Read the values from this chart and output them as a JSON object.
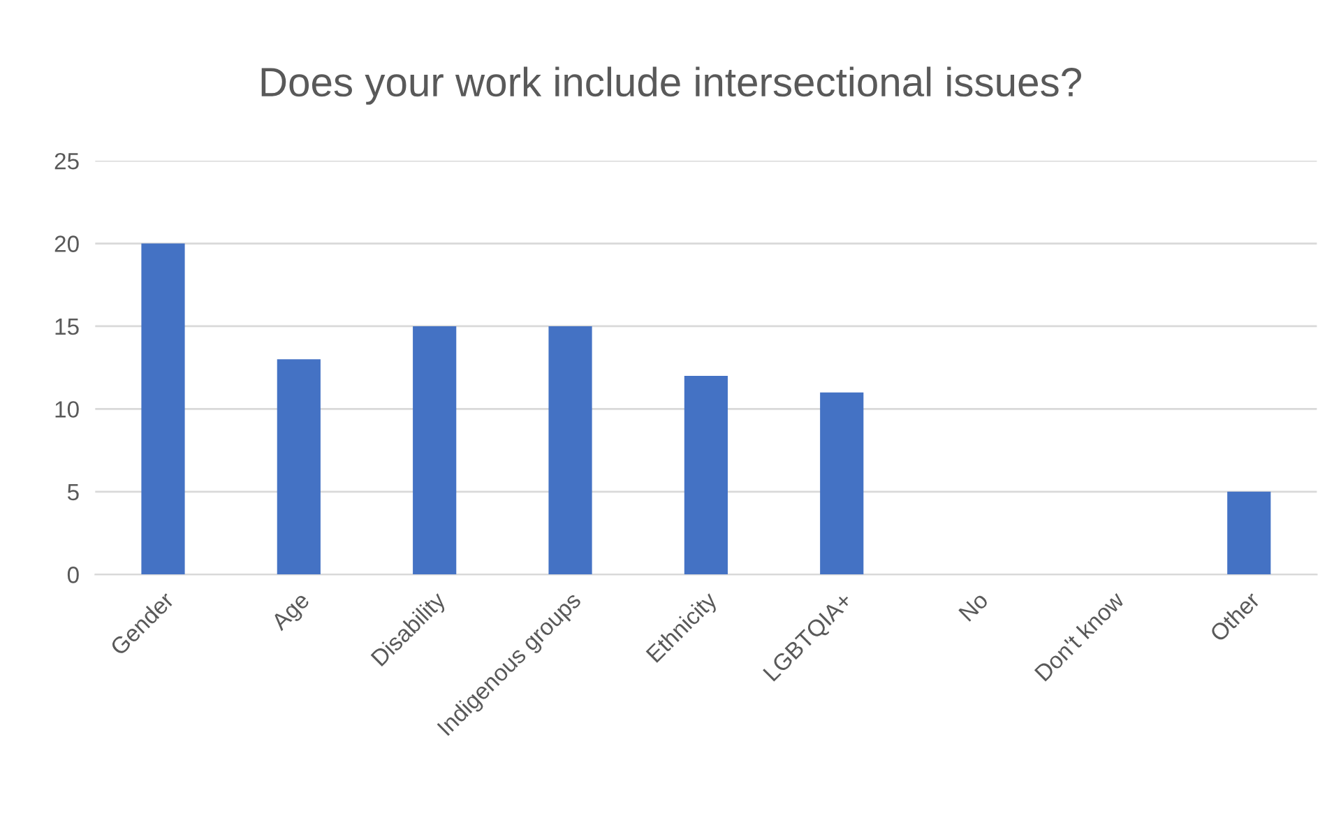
{
  "chart_data": {
    "type": "bar",
    "title": "Does your work include intersectional issues?",
    "categories": [
      "Gender",
      "Age",
      "Disability",
      "Indigenous groups",
      "Ethnicity",
      "LGBTQIA+",
      "No",
      "Don't know",
      "Other"
    ],
    "values": [
      20,
      13,
      15,
      15,
      12,
      11,
      0,
      0,
      5
    ],
    "color": "#4472c4",
    "ylim": [
      0,
      25
    ],
    "yticks": [
      0,
      5,
      10,
      15,
      20,
      25
    ],
    "grid": "y"
  }
}
